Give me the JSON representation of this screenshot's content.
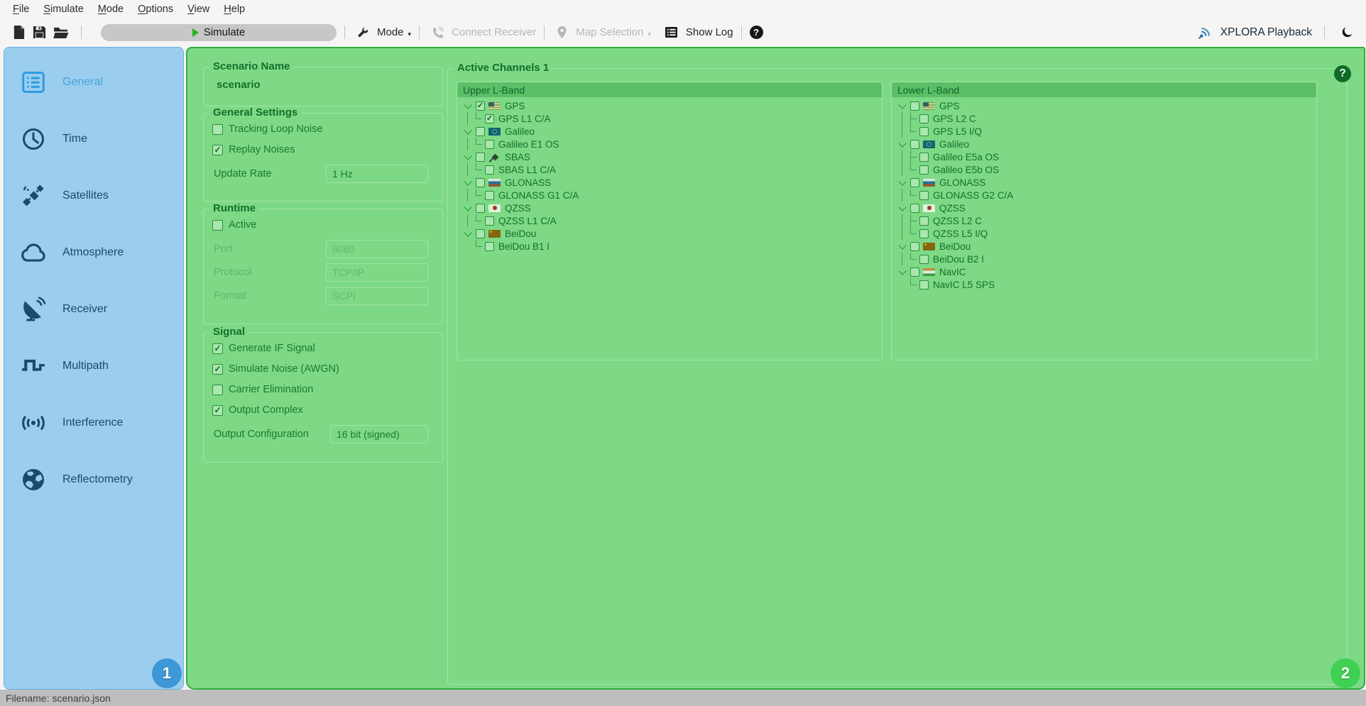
{
  "menubar": {
    "items": [
      "File",
      "Simulate",
      "Mode",
      "Options",
      "View",
      "Help"
    ]
  },
  "toolbar": {
    "simulate_label": "Simulate",
    "mode_label": "Mode",
    "connect_receiver_label": "Connect Receiver",
    "map_selection_label": "Map Selection",
    "show_log_label": "Show Log",
    "help_glyph": "?",
    "playback_label": "XPLORA Playback",
    "icons": [
      "new-file-icon",
      "save-icon",
      "open-folder-icon",
      "play-icon",
      "wrench-icon",
      "phone-icon",
      "map-marker-icon",
      "log-list-icon",
      "help-icon",
      "radio-waves-icon",
      "moon-icon"
    ]
  },
  "sidebar": {
    "items": [
      {
        "label": "General",
        "icon": "general-icon",
        "selected": true
      },
      {
        "label": "Time",
        "icon": "clock-icon",
        "selected": false
      },
      {
        "label": "Satellites",
        "icon": "satellite-icon",
        "selected": false
      },
      {
        "label": "Atmosphere",
        "icon": "cloud-icon",
        "selected": false
      },
      {
        "label": "Receiver",
        "icon": "dish-icon",
        "selected": false
      },
      {
        "label": "Multipath",
        "icon": "step-wave-icon",
        "selected": false
      },
      {
        "label": "Interference",
        "icon": "signal-waves-icon",
        "selected": false
      },
      {
        "label": "Reflectometry",
        "icon": "globe-icon",
        "selected": false
      }
    ]
  },
  "panels": {
    "scenario": {
      "title": "Scenario Name",
      "value": "scenario"
    },
    "general_settings": {
      "title": "General Settings",
      "checkboxes": [
        {
          "label": "Tracking Loop Noise",
          "checked": false
        },
        {
          "label": "Replay Noises",
          "checked": true
        }
      ],
      "update_rate_label": "Update Rate",
      "update_rate_value": "1 Hz"
    },
    "runtime": {
      "title": "Runtime",
      "active_label": "Active",
      "active_checked": false,
      "fields": [
        {
          "label": "Port",
          "value": "8080",
          "disabled": true,
          "indicator": "spin"
        },
        {
          "label": "Protocol",
          "value": "TCP/IP",
          "disabled": true,
          "indicator": "drop"
        },
        {
          "label": "Format",
          "value": "SCPI",
          "disabled": true,
          "indicator": "drop"
        }
      ]
    },
    "signal": {
      "title": "Signal",
      "checkboxes": [
        {
          "label": "Generate IF Signal",
          "checked": true
        },
        {
          "label": "Simulate Noise (AWGN)",
          "checked": true
        },
        {
          "label": "Carrier Elimination",
          "checked": false
        },
        {
          "label": "Output Complex",
          "checked": true
        }
      ],
      "output_config_label": "Output Configuration",
      "output_config_value": "16 bit (signed)"
    }
  },
  "active_channels": {
    "title": "Active Channels 1",
    "help_glyph": "?",
    "bands": [
      {
        "name": "Upper L-Band",
        "systems": [
          {
            "name": "GPS",
            "flag": "us",
            "checked": true,
            "signals": [
              {
                "name": "GPS L1 C/A",
                "checked": true
              }
            ]
          },
          {
            "name": "Galileo",
            "flag": "eu",
            "checked": false,
            "signals": [
              {
                "name": "Galileo E1 OS",
                "checked": false
              }
            ]
          },
          {
            "name": "SBAS",
            "flag": "sbas",
            "checked": false,
            "signals": [
              {
                "name": "SBAS L1 C/A",
                "checked": false
              }
            ]
          },
          {
            "name": "GLONASS",
            "flag": "ru",
            "checked": false,
            "signals": [
              {
                "name": "GLONASS G1 C/A",
                "checked": false
              }
            ]
          },
          {
            "name": "QZSS",
            "flag": "jp",
            "checked": false,
            "signals": [
              {
                "name": "QZSS L1 C/A",
                "checked": false
              }
            ]
          },
          {
            "name": "BeiDou",
            "flag": "cn",
            "checked": false,
            "signals": [
              {
                "name": "BeiDou B1 I",
                "checked": false
              }
            ]
          }
        ]
      },
      {
        "name": "Lower L-Band",
        "systems": [
          {
            "name": "GPS",
            "flag": "us",
            "checked": false,
            "signals": [
              {
                "name": "GPS L2 C",
                "checked": false
              },
              {
                "name": "GPS L5 I/Q",
                "checked": false
              }
            ]
          },
          {
            "name": "Galileo",
            "flag": "eu",
            "checked": false,
            "signals": [
              {
                "name": "Galileo E5a OS",
                "checked": false
              },
              {
                "name": "Galileo E5b OS",
                "checked": false
              }
            ]
          },
          {
            "name": "GLONASS",
            "flag": "ru",
            "checked": false,
            "signals": [
              {
                "name": "GLONASS G2 C/A",
                "checked": false
              }
            ]
          },
          {
            "name": "QZSS",
            "flag": "jp",
            "checked": false,
            "signals": [
              {
                "name": "QZSS L2 C",
                "checked": false
              },
              {
                "name": "QZSS L5 I/Q",
                "checked": false
              }
            ]
          },
          {
            "name": "BeiDou",
            "flag": "cn",
            "checked": false,
            "signals": [
              {
                "name": "BeiDou B2 I",
                "checked": false
              }
            ]
          },
          {
            "name": "NavIC",
            "flag": "in",
            "checked": false,
            "signals": [
              {
                "name": "NavIC L5 SPS",
                "checked": false
              }
            ]
          }
        ]
      }
    ]
  },
  "badges": {
    "region1": "1",
    "region2": "2"
  },
  "statusbar": {
    "text": "Filename: scenario.json"
  },
  "colors": {
    "sidebar_blue": "#9acdee",
    "sidebar_selected_blue": "#2e9ce1",
    "panel_green": "#7dd986",
    "panel_border_green": "#2fae41",
    "text_dark_green": "#14702a",
    "list_header_green": "#5bbf67",
    "badge1_blue": "#3e97d6",
    "badge2_green": "#3fd054",
    "play_green": "#25b325",
    "statusbar_gray": "#bebec0"
  }
}
